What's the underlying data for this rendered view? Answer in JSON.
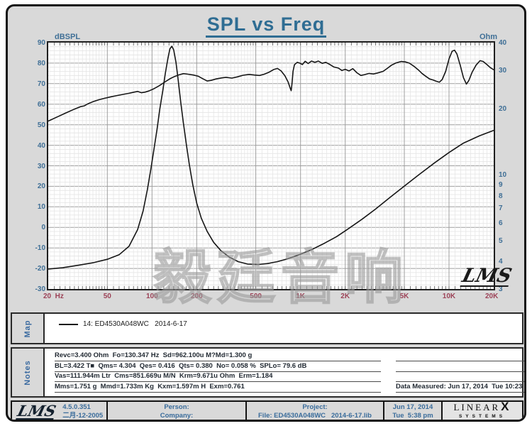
{
  "title": "SPL vs Freq",
  "colors": {
    "title_accent": "#2f6d93",
    "axis_blue": "#3f6f96",
    "freq_label_red": "#9c4257",
    "curve": "#161616"
  },
  "axes": {
    "left_unit": "dBSPL",
    "right_unit": "Ohm",
    "left_ticks": [
      90,
      80,
      70,
      60,
      50,
      40,
      30,
      20,
      10,
      0,
      -10,
      -20,
      -30
    ],
    "right_ticks": [
      40,
      30,
      20,
      10,
      9,
      8,
      7,
      6,
      5,
      4,
      3
    ],
    "freq_ticks": [
      {
        "f": 20,
        "label": "20  Hz"
      },
      {
        "f": 50,
        "label": "50"
      },
      {
        "f": 100,
        "label": "100"
      },
      {
        "f": 200,
        "label": "200"
      },
      {
        "f": 500,
        "label": "500"
      },
      {
        "f": 1000,
        "label": "1K"
      },
      {
        "f": 2000,
        "label": "2K"
      },
      {
        "f": 5000,
        "label": "5K"
      },
      {
        "f": 10000,
        "label": "10K"
      },
      {
        "f": 20000,
        "label": "20K"
      }
    ]
  },
  "watermark": {
    "cjk": "毅廷音响",
    "lms_script": "LMS"
  },
  "map": {
    "label": "Map",
    "legend_text": "14: ED4530A048WC   2014-6-17"
  },
  "notes": {
    "label": "Notes",
    "left_lines": [
      "Revc=3.400 Ohm  Fo=130.347 Hz  Sd=962.100u M?Md=1.300 g",
      "BL=3.422 T■  Qms= 4.304  Qes= 0.416  Qts= 0.380  No= 0.058 %  SPLo= 79.6 dB",
      "Vas=111.944m Ltr  Cms=851.669u M/N  Krm=9.671u Ohm  Erm=1.184",
      "Mms=1.751 g  Mmd=1.733m Kg  Kxm=1.597m H  Exm=0.761"
    ],
    "right_lines": [
      "",
      "",
      "",
      "Data Measured: Jun 17, 2014  Tue 10:23 am"
    ]
  },
  "footer": {
    "lms_logo": "LMS",
    "version": "4.5.0.351",
    "version_date": "二月-12-2005",
    "person_label": "Person:",
    "company_label": "Company:",
    "project_label": "Project:",
    "file_line": "File: ED4530A048WC   2014-6-17.lib",
    "date": "Jun 17, 2014",
    "time": "Tue  5:38 pm",
    "brand_main": "LINEAR",
    "brand_x": "X",
    "brand_sub": "SYSTEMS"
  },
  "chart_data": {
    "type": "line",
    "title": "SPL vs Freq",
    "x_axis": {
      "scale": "log",
      "min": 20,
      "max": 20000,
      "unit": "Hz"
    },
    "y_left": {
      "unit": "dBSPL",
      "min": -30,
      "max": 90,
      "major_step": 10,
      "minor_step": 2
    },
    "y_right": {
      "unit": "Ohm",
      "scale": "log",
      "min": 3,
      "max": 40
    },
    "grid": true,
    "legend_position": "map-panel-below",
    "series": [
      {
        "name": "SPL (14: ED4530A048WC 2014-6-17)",
        "axis": "left",
        "points": [
          [
            20,
            51.8
          ],
          [
            23,
            53.8
          ],
          [
            26,
            55.6
          ],
          [
            30,
            57.6
          ],
          [
            33,
            58.8
          ],
          [
            35,
            59.2
          ],
          [
            37,
            60.2
          ],
          [
            40,
            61.2
          ],
          [
            44,
            62.2
          ],
          [
            48,
            62.9
          ],
          [
            53,
            63.6
          ],
          [
            58,
            64.2
          ],
          [
            64,
            64.8
          ],
          [
            70,
            65.3
          ],
          [
            76,
            65.9
          ],
          [
            80,
            66.2
          ],
          [
            85,
            65.6
          ],
          [
            90,
            65.9
          ],
          [
            95,
            66.4
          ],
          [
            102,
            67.4
          ],
          [
            112,
            69.0
          ],
          [
            122,
            70.8
          ],
          [
            132,
            72.4
          ],
          [
            142,
            73.5
          ],
          [
            152,
            74.3
          ],
          [
            163,
            74.9
          ],
          [
            175,
            74.6
          ],
          [
            190,
            74.2
          ],
          [
            205,
            73.6
          ],
          [
            220,
            72.4
          ],
          [
            235,
            71.3
          ],
          [
            250,
            71.6
          ],
          [
            270,
            72.3
          ],
          [
            295,
            72.8
          ],
          [
            315,
            73.1
          ],
          [
            345,
            72.7
          ],
          [
            375,
            73.3
          ],
          [
            410,
            74.1
          ],
          [
            450,
            74.5
          ],
          [
            490,
            74.2
          ],
          [
            530,
            74.0
          ],
          [
            570,
            74.6
          ],
          [
            615,
            75.6
          ],
          [
            660,
            76.9
          ],
          [
            700,
            77.4
          ],
          [
            740,
            76.2
          ],
          [
            785,
            73.9
          ],
          [
            825,
            70.8
          ],
          [
            850,
            68.0
          ],
          [
            865,
            66.6
          ],
          [
            875,
            69.5
          ],
          [
            890,
            76.0
          ],
          [
            910,
            79.2
          ],
          [
            950,
            80.4
          ],
          [
            990,
            80.0
          ],
          [
            1030,
            79.3
          ],
          [
            1075,
            80.9
          ],
          [
            1125,
            79.8
          ],
          [
            1185,
            81.0
          ],
          [
            1250,
            80.4
          ],
          [
            1320,
            81.0
          ],
          [
            1400,
            79.9
          ],
          [
            1480,
            80.4
          ],
          [
            1570,
            79.4
          ],
          [
            1680,
            78.1
          ],
          [
            1800,
            77.6
          ],
          [
            1900,
            76.4
          ],
          [
            2000,
            77.0
          ],
          [
            2120,
            76.2
          ],
          [
            2250,
            77.3
          ],
          [
            2400,
            75.3
          ],
          [
            2550,
            74.0
          ],
          [
            2700,
            74.4
          ],
          [
            2900,
            75.0
          ],
          [
            3100,
            74.7
          ],
          [
            3300,
            75.2
          ],
          [
            3600,
            76.0
          ],
          [
            3850,
            77.5
          ],
          [
            4100,
            79.0
          ],
          [
            4400,
            80.1
          ],
          [
            4750,
            80.8
          ],
          [
            5100,
            80.6
          ],
          [
            5400,
            80.0
          ],
          [
            5800,
            78.5
          ],
          [
            6200,
            76.8
          ],
          [
            6600,
            74.9
          ],
          [
            7000,
            73.5
          ],
          [
            7400,
            72.3
          ],
          [
            7800,
            71.8
          ],
          [
            8200,
            71.2
          ],
          [
            8600,
            70.7
          ],
          [
            9000,
            72.0
          ],
          [
            9500,
            76.0
          ],
          [
            10000,
            82.0
          ],
          [
            10500,
            85.8
          ],
          [
            10900,
            86.3
          ],
          [
            11300,
            84.5
          ],
          [
            11900,
            79.0
          ],
          [
            12500,
            73.0
          ],
          [
            13100,
            69.8
          ],
          [
            13600,
            71.5
          ],
          [
            14300,
            75.5
          ],
          [
            15200,
            79.0
          ],
          [
            16200,
            81.2
          ],
          [
            17000,
            80.8
          ],
          [
            18000,
            79.3
          ],
          [
            19000,
            77.8
          ],
          [
            20000,
            76.8
          ]
        ]
      },
      {
        "name": "Impedance",
        "axis": "right",
        "points": [
          [
            20,
            3.7
          ],
          [
            25,
            3.75
          ],
          [
            32,
            3.85
          ],
          [
            40,
            3.95
          ],
          [
            50,
            4.1
          ],
          [
            60,
            4.3
          ],
          [
            70,
            4.7
          ],
          [
            80,
            5.6
          ],
          [
            87,
            6.8
          ],
          [
            93,
            8.5
          ],
          [
            98,
            10.5
          ],
          [
            103,
            13.0
          ],
          [
            108,
            16.0
          ],
          [
            113,
            20.0
          ],
          [
            118,
            24.0
          ],
          [
            123,
            29.0
          ],
          [
            128,
            34.0
          ],
          [
            132,
            37.5
          ],
          [
            136,
            38.5
          ],
          [
            140,
            37.0
          ],
          [
            145,
            32.5
          ],
          [
            150,
            27.0
          ],
          [
            156,
            21.5
          ],
          [
            162,
            17.5
          ],
          [
            170,
            13.8
          ],
          [
            178,
            11.2
          ],
          [
            188,
            9.0
          ],
          [
            200,
            7.4
          ],
          [
            215,
            6.3
          ],
          [
            235,
            5.5
          ],
          [
            260,
            4.9
          ],
          [
            290,
            4.5
          ],
          [
            330,
            4.2
          ],
          [
            380,
            4.0
          ],
          [
            440,
            3.9
          ],
          [
            520,
            3.88
          ],
          [
            600,
            3.92
          ],
          [
            700,
            4.0
          ],
          [
            820,
            4.12
          ],
          [
            980,
            4.3
          ],
          [
            1200,
            4.55
          ],
          [
            1450,
            4.85
          ],
          [
            1750,
            5.2
          ],
          [
            2100,
            5.65
          ],
          [
            2600,
            6.25
          ],
          [
            3200,
            6.95
          ],
          [
            4000,
            7.85
          ],
          [
            5000,
            8.85
          ],
          [
            6300,
            10.0
          ],
          [
            8000,
            11.3
          ],
          [
            10000,
            12.6
          ],
          [
            12500,
            13.9
          ],
          [
            16000,
            15.0
          ],
          [
            20000,
            15.9
          ]
        ]
      }
    ]
  }
}
